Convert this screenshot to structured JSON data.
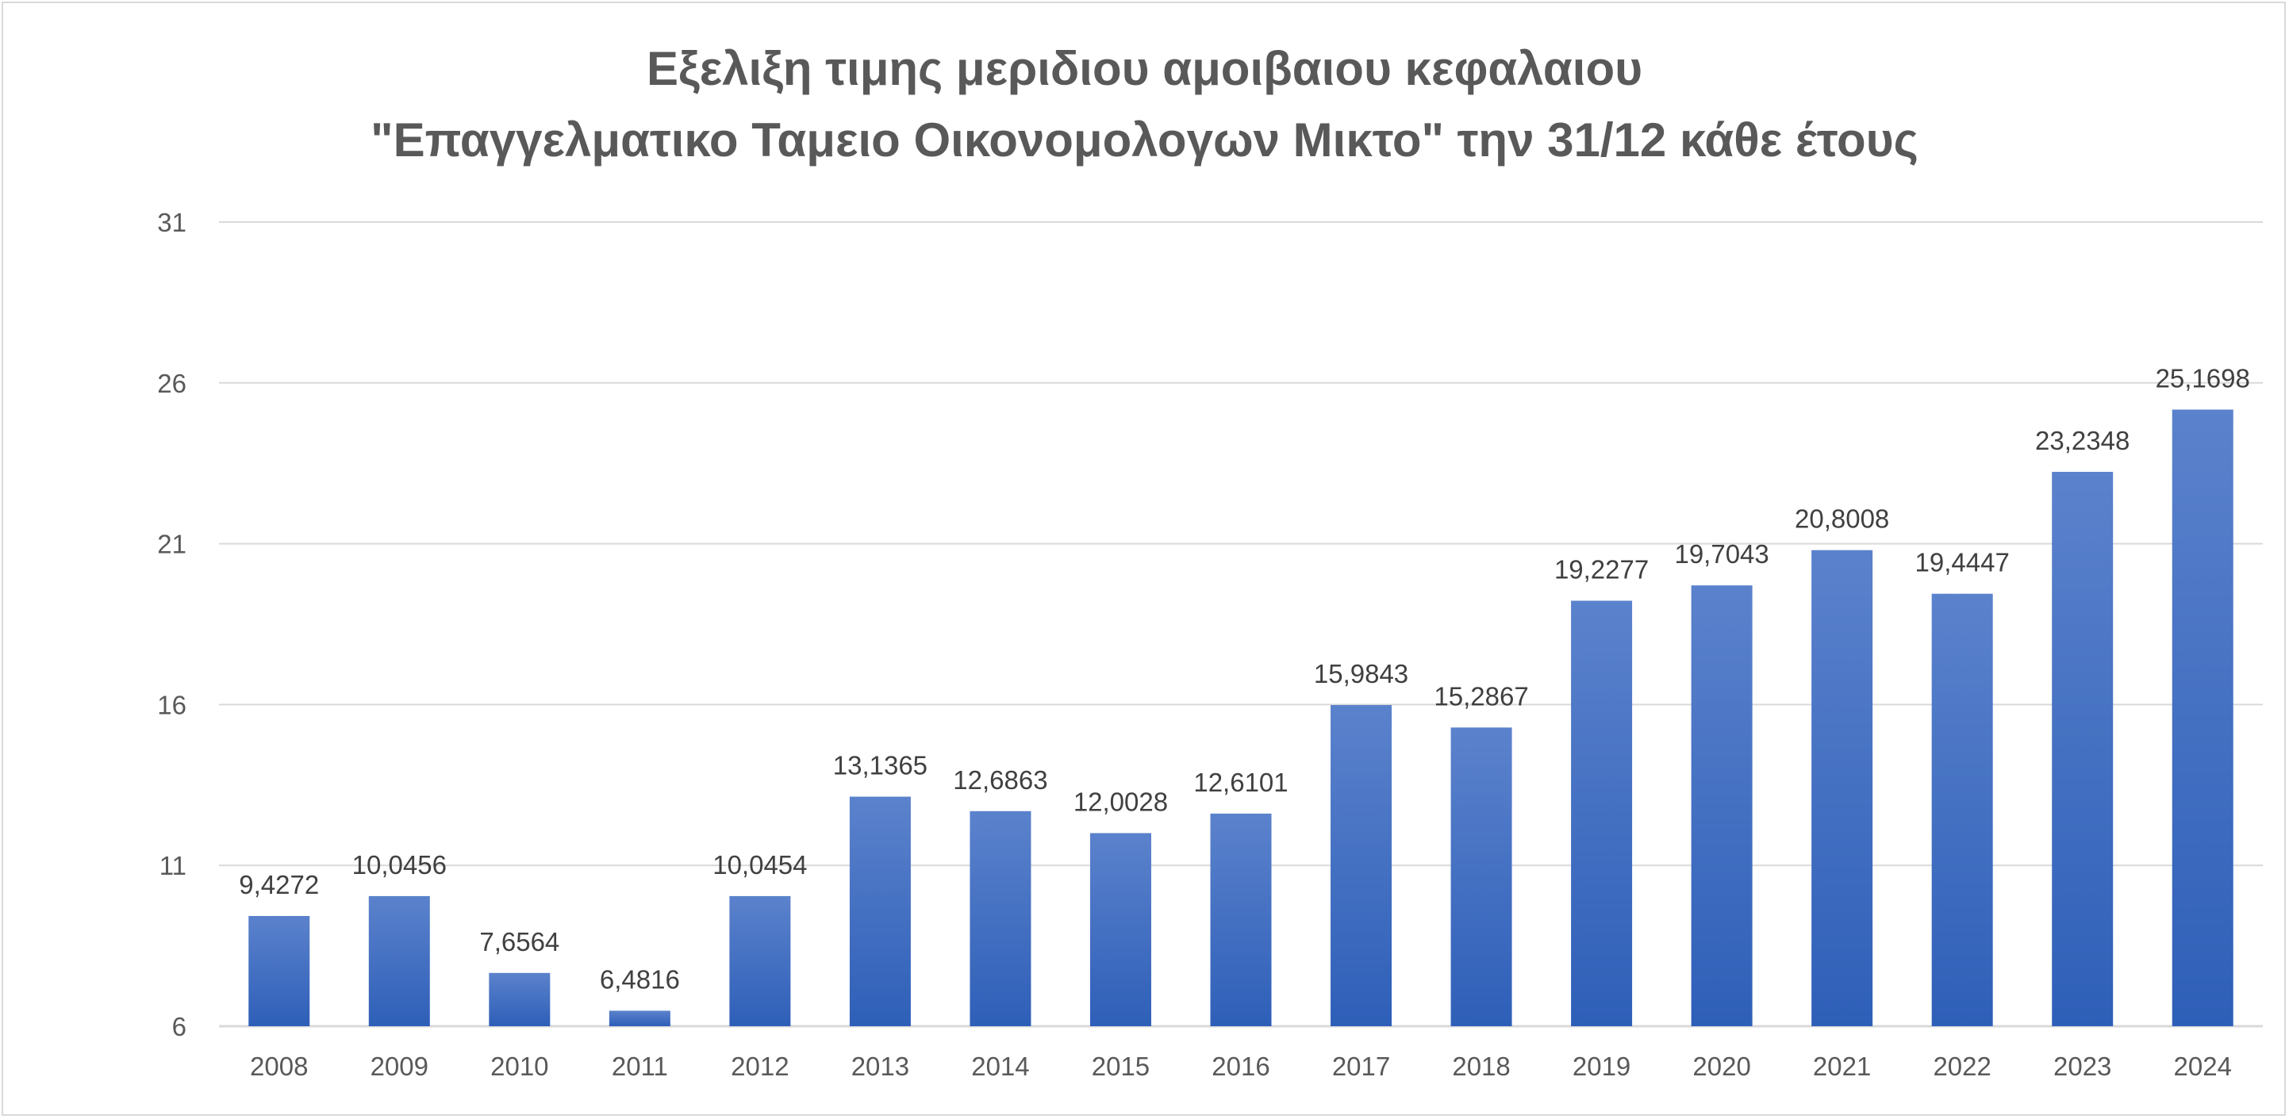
{
  "chart_data": {
    "type": "bar",
    "title": "Εξελιξη τιμης μεριδιου αμοιβαιου κεφαλαιου",
    "subtitle": "\"Επαγγελματικο Ταμειο Οικονομολογων Μικτο\" την 31/12 κάθε έτους",
    "xlabel": "",
    "ylabel": "",
    "categories": [
      "2008",
      "2009",
      "2010",
      "2011",
      "2012",
      "2013",
      "2014",
      "2015",
      "2016",
      "2017",
      "2018",
      "2019",
      "2020",
      "2021",
      "2022",
      "2023",
      "2024"
    ],
    "values": [
      9.4272,
      10.0456,
      7.6564,
      6.4816,
      10.0454,
      13.1365,
      12.6863,
      12.0028,
      12.6101,
      15.9843,
      15.2867,
      19.2277,
      19.7043,
      20.8008,
      19.4447,
      23.2348,
      25.1698
    ],
    "data_labels": [
      "9,4272",
      "10,0456",
      "7,6564",
      "6,4816",
      "10,0454",
      "13,1365",
      "12,6863",
      "12,0028",
      "12,6101",
      "15,9843",
      "15,2867",
      "19,2277",
      "19,7043",
      "20,8008",
      "19,4447",
      "23,2348",
      "25,1698"
    ],
    "ylim": [
      6,
      31
    ],
    "yticks": [
      "6",
      "11",
      "16",
      "21",
      "26",
      "31"
    ],
    "grid": true,
    "legend": "none",
    "colors": {
      "bar_top": "#5b82cc",
      "bar_bottom": "#2e5fb8",
      "grid": "#d9d9d9",
      "text": "#595959",
      "label": "#404040"
    }
  }
}
